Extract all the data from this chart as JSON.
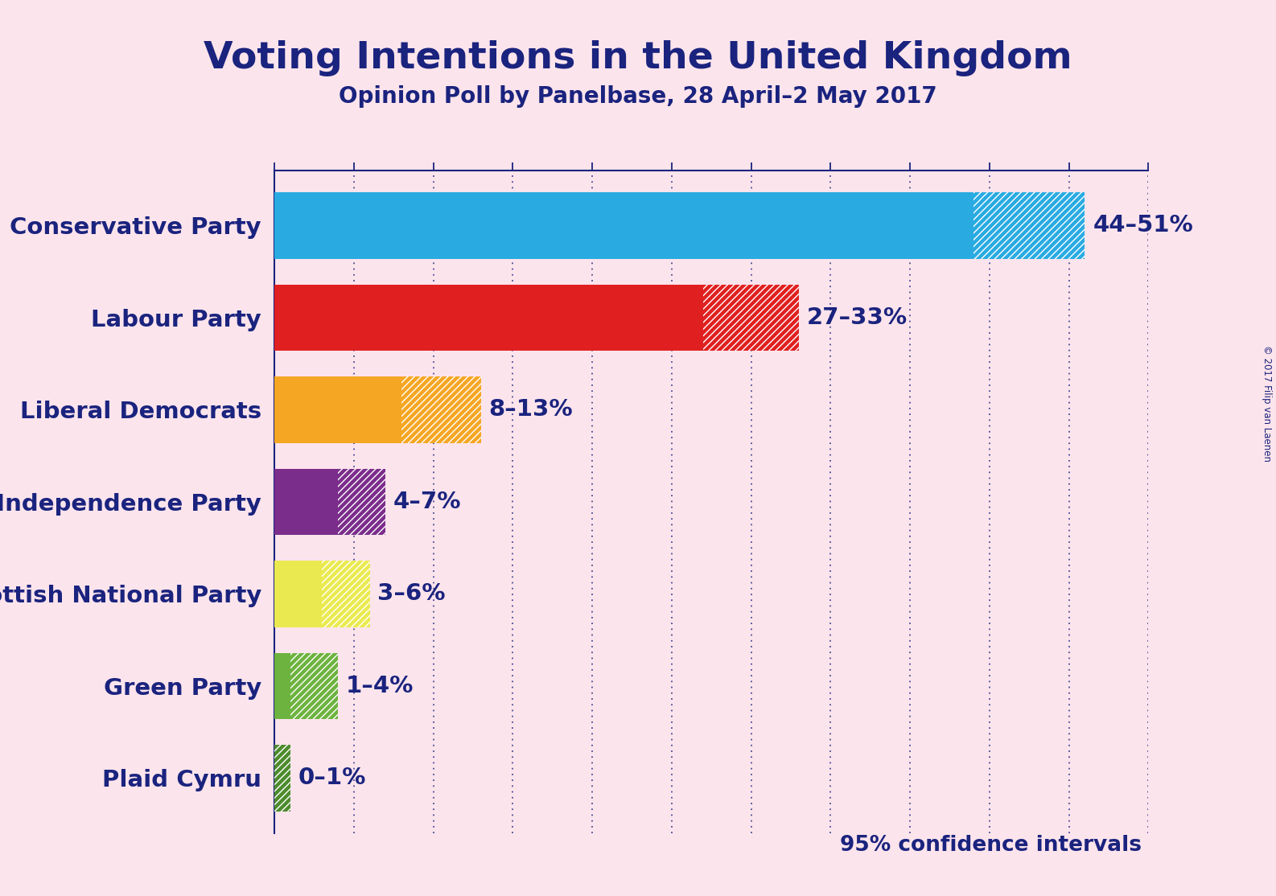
{
  "title": "Voting Intentions in the United Kingdom",
  "subtitle": "Opinion Poll by Panelbase, 28 April–2 May 2017",
  "footnote": "95% confidence intervals",
  "credit": "© 2017 Filip van Laenen",
  "background_color": "#fce4ec",
  "title_color": "#1a237e",
  "subtitle_color": "#1a237e",
  "footnote_color": "#1a237e",
  "parties": [
    "Conservative Party",
    "Labour Party",
    "Liberal Democrats",
    "UK Independence Party",
    "Scottish National Party",
    "Green Party",
    "Plaid Cymru"
  ],
  "low": [
    44,
    27,
    8,
    4,
    3,
    1,
    0
  ],
  "high": [
    51,
    33,
    13,
    7,
    6,
    4,
    1
  ],
  "colors": [
    "#29abe2",
    "#e02020",
    "#f5a623",
    "#7b2d8b",
    "#eaea50",
    "#6db33f",
    "#4d8b2d"
  ],
  "labels": [
    "44–51%",
    "27–33%",
    "8–13%",
    "4–7%",
    "3–6%",
    "1–4%",
    "0–1%"
  ],
  "xlim": [
    0,
    55
  ],
  "tick_interval": 5,
  "grid_color": "#1a237e",
  "axis_line_color": "#1a237e",
  "bar_height": 0.72,
  "title_fontsize": 34,
  "subtitle_fontsize": 20,
  "label_fontsize": 21,
  "ytick_fontsize": 21,
  "footnote_fontsize": 19
}
